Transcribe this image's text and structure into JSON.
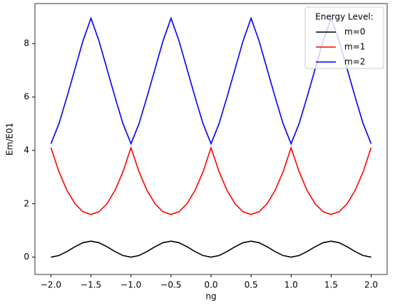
{
  "chart_data": {
    "type": "line",
    "x_label": "ng",
    "y_label": "Em/E01",
    "legend_title": "Energy Level:",
    "legend": "upper right",
    "x": [
      -2.0,
      -1.9,
      -1.8,
      -1.7,
      -1.6,
      -1.5,
      -1.4,
      -1.3,
      -1.2,
      -1.1,
      -1.0,
      -0.9,
      -0.8,
      -0.7,
      -0.6,
      -0.5,
      -0.4,
      -0.3,
      -0.2,
      -0.1,
      0.0,
      0.1,
      0.2,
      0.3,
      0.4,
      0.5,
      0.6,
      0.7,
      0.8,
      0.9,
      1.0,
      1.1,
      1.2,
      1.3,
      1.4,
      1.5,
      1.6,
      1.7,
      1.8,
      1.9,
      2.0
    ],
    "series": [
      {
        "name": "m=0",
        "color": "#000000",
        "values": [
          0,
          0.06,
          0.21,
          0.39,
          0.54,
          0.6,
          0.54,
          0.39,
          0.21,
          0.06,
          0,
          0.06,
          0.21,
          0.39,
          0.54,
          0.6,
          0.54,
          0.39,
          0.21,
          0.06,
          0,
          0.06,
          0.21,
          0.39,
          0.54,
          0.6,
          0.54,
          0.39,
          0.21,
          0.06,
          0,
          0.06,
          0.21,
          0.39,
          0.54,
          0.6,
          0.54,
          0.39,
          0.21,
          0.06,
          0
        ]
      },
      {
        "name": "m=1",
        "color": "#ff0000",
        "values": [
          4.1,
          3.2,
          2.5,
          2.0,
          1.7,
          1.6,
          1.7,
          2.0,
          2.5,
          3.2,
          4.1,
          3.2,
          2.5,
          2.0,
          1.7,
          1.6,
          1.7,
          2.0,
          2.5,
          3.2,
          4.1,
          3.2,
          2.5,
          2.0,
          1.7,
          1.6,
          1.7,
          2.0,
          2.5,
          3.2,
          4.1,
          3.2,
          2.5,
          2.0,
          1.7,
          1.6,
          1.7,
          2.0,
          2.5,
          3.2,
          4.1
        ]
      },
      {
        "name": "m=2",
        "color": "#0000ff",
        "values": [
          4.25,
          5.0,
          6.0,
          7.05,
          8.1,
          8.95,
          8.1,
          7.05,
          6.0,
          5.0,
          4.25,
          5.0,
          6.0,
          7.05,
          8.1,
          8.95,
          8.1,
          7.05,
          6.0,
          5.0,
          4.25,
          5.0,
          6.0,
          7.05,
          8.1,
          8.95,
          8.1,
          7.05,
          6.0,
          5.0,
          4.25,
          5.0,
          6.0,
          7.05,
          8.1,
          8.95,
          8.1,
          7.05,
          6.0,
          5.0,
          4.25
        ]
      }
    ],
    "xlim": [
      -2.2,
      2.2
    ],
    "ylim": [
      -0.65,
      9.5
    ],
    "xticks": [
      {
        "value": -2,
        "label": "−2.0"
      },
      {
        "value": -1.5,
        "label": "−1.5"
      },
      {
        "value": -1,
        "label": "−1.0"
      },
      {
        "value": -0.5,
        "label": "−0.5"
      },
      {
        "value": 0,
        "label": "0.0"
      },
      {
        "value": 0.5,
        "label": "0.5"
      },
      {
        "value": 1,
        "label": "1.0"
      },
      {
        "value": 1.5,
        "label": "1.5"
      },
      {
        "value": 2,
        "label": "2.0"
      }
    ],
    "yticks": [
      0,
      2,
      4,
      6,
      8
    ]
  }
}
